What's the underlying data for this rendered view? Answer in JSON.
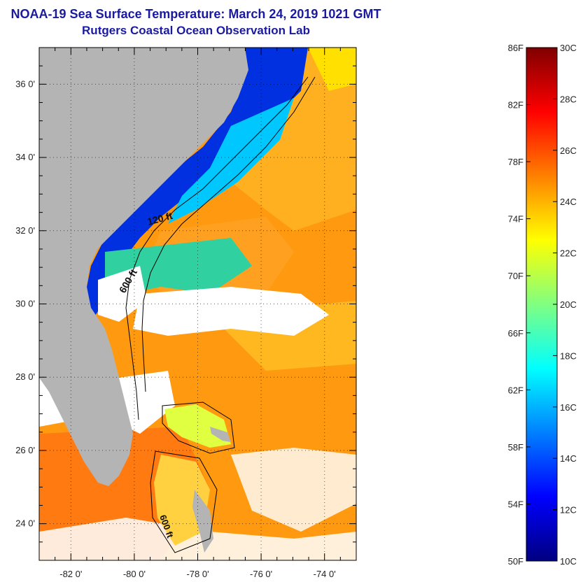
{
  "header": {
    "title": "NOAA-19 Sea Surface Temperature:  March 24, 2019 1021 GMT",
    "subtitle": "Rutgers Coastal Ocean Observation Lab"
  },
  "map": {
    "lat_ticks": [
      {
        "value": 36,
        "label": "36 0'"
      },
      {
        "value": 34,
        "label": "34 0'"
      },
      {
        "value": 32,
        "label": "32 0'"
      },
      {
        "value": 30,
        "label": "30 0'"
      },
      {
        "value": 28,
        "label": "28 0'"
      },
      {
        "value": 26,
        "label": "26 0'"
      },
      {
        "value": 24,
        "label": "24 0'"
      }
    ],
    "lon_ticks": [
      {
        "value": -82,
        "label": "-82 0'"
      },
      {
        "value": -80,
        "label": "-80 0'"
      },
      {
        "value": -78,
        "label": "-78 0'"
      },
      {
        "value": -76,
        "label": "-76 0'"
      },
      {
        "value": -74,
        "label": "-74 0'"
      }
    ],
    "lat_range": [
      23.0,
      37.0
    ],
    "lon_range": [
      -83.0,
      -73.0
    ],
    "contour_labels": [
      "120 ft",
      "600 ft",
      "600 ft"
    ],
    "land_color": "#b4b4b4",
    "cloud_color": "#ffffff"
  },
  "colorbar": {
    "min_c": 10,
    "max_c": 30,
    "f_labels": [
      "86F",
      "82F",
      "78F",
      "74F",
      "70F",
      "66F",
      "62F",
      "58F",
      "54F",
      "50F"
    ],
    "c_labels": [
      "30C",
      "28C",
      "26C",
      "24C",
      "22C",
      "20C",
      "18C",
      "16C",
      "14C",
      "12C",
      "10C"
    ],
    "colors": [
      "#000080",
      "#0000ff",
      "#0080ff",
      "#00ffff",
      "#80ff80",
      "#ffff00",
      "#ff8000",
      "#ff0000",
      "#800000"
    ]
  }
}
